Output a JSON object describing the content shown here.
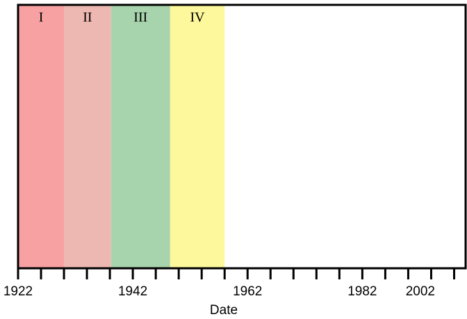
{
  "chart_data": {
    "type": "timeline",
    "xlabel": "Date",
    "xlim": [
      1922,
      2000
    ],
    "x_ticks": [
      1922,
      1926,
      1930,
      1934,
      1938,
      1942,
      1946,
      1950,
      1954,
      1958,
      1962,
      1966,
      1970,
      1974,
      1978,
      1982,
      1986,
      1990,
      1994,
      1998
    ],
    "x_tick_labels": [
      {
        "value": 1922,
        "label": "1922"
      },
      {
        "value": 1942,
        "label": "1942"
      },
      {
        "value": 1962,
        "label": "1962"
      },
      {
        "value": 1982,
        "label": "1982"
      },
      {
        "value": 2002,
        "label": "2002"
      }
    ],
    "bands": [
      {
        "label": "I",
        "start": 1922,
        "end": 1930.0,
        "color": "#f7a1a3"
      },
      {
        "label": "II",
        "start": 1930.0,
        "end": 1938.2,
        "color": "#edb8b1"
      },
      {
        "label": "III",
        "start": 1938.2,
        "end": 1948.5,
        "color": "#a8d4ad"
      },
      {
        "label": "IV",
        "start": 1948.5,
        "end": 1958.0,
        "color": "#fdf89b"
      }
    ],
    "grid": false
  }
}
